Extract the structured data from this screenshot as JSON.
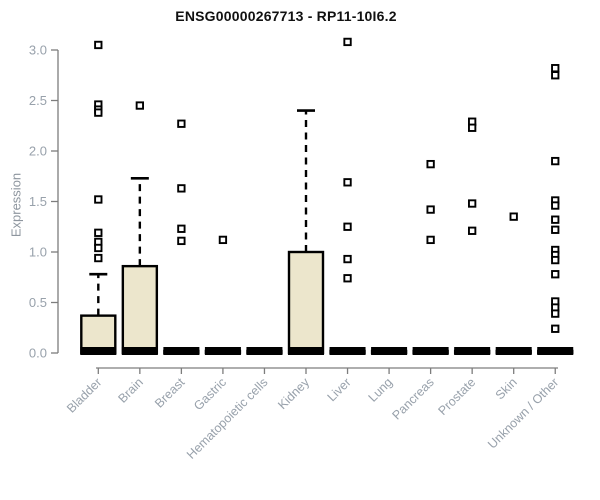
{
  "chart_data": {
    "type": "boxplot",
    "title": "ENSG00000267713 - RP11-10I6.2",
    "ylabel": "Expression",
    "xlabel": "",
    "ylim": [
      0.0,
      3.0
    ],
    "yticks": [
      0.0,
      0.5,
      1.0,
      1.5,
      2.0,
      2.5,
      3.0
    ],
    "grid": false,
    "legend": "none",
    "categories": [
      "Bladder",
      "Brain",
      "Breast",
      "Gastric",
      "Hematopoietic cells",
      "Kidney",
      "Liver",
      "Lung",
      "Pancreas",
      "Prostate",
      "Skin",
      "Unknown / Other"
    ],
    "boxes": [
      {
        "category": "Bladder",
        "whisker_low": 0,
        "q1": 0,
        "median": 0.02,
        "q3": 0.37,
        "whisker_high": 0.78,
        "outliers": [
          3.05,
          2.46,
          2.41,
          2.38,
          1.52,
          1.19,
          1.1,
          1.04,
          0.94
        ]
      },
      {
        "category": "Brain",
        "whisker_low": 0,
        "q1": 0,
        "median": 0.02,
        "q3": 0.86,
        "whisker_high": 1.73,
        "outliers": [
          2.45
        ]
      },
      {
        "category": "Breast",
        "whisker_low": 0,
        "q1": 0,
        "median": 0.02,
        "q3": 0.02,
        "whisker_high": 0,
        "outliers": [
          2.27,
          1.63,
          1.23,
          1.11
        ]
      },
      {
        "category": "Gastric",
        "whisker_low": 0,
        "q1": 0,
        "median": 0.02,
        "q3": 0.02,
        "whisker_high": 0,
        "outliers": [
          1.12
        ]
      },
      {
        "category": "Hematopoietic cells",
        "whisker_low": 0,
        "q1": 0,
        "median": 0.02,
        "q3": 0.02,
        "whisker_high": 0,
        "outliers": []
      },
      {
        "category": "Kidney",
        "whisker_low": 0,
        "q1": 0,
        "median": 0.02,
        "q3": 1.0,
        "whisker_high": 2.4,
        "outliers": []
      },
      {
        "category": "Liver",
        "whisker_low": 0,
        "q1": 0,
        "median": 0.02,
        "q3": 0.02,
        "whisker_high": 0,
        "outliers": [
          3.08,
          1.69,
          1.25,
          0.93,
          0.74
        ]
      },
      {
        "category": "Lung",
        "whisker_low": 0,
        "q1": 0,
        "median": 0.02,
        "q3": 0.02,
        "whisker_high": 0,
        "outliers": []
      },
      {
        "category": "Pancreas",
        "whisker_low": 0,
        "q1": 0,
        "median": 0.02,
        "q3": 0.02,
        "whisker_high": 0,
        "outliers": [
          1.87,
          1.42,
          1.12
        ]
      },
      {
        "category": "Prostate",
        "whisker_low": 0,
        "q1": 0,
        "median": 0.02,
        "q3": 0.02,
        "whisker_high": 0,
        "outliers": [
          2.29,
          2.23,
          1.48,
          1.21
        ]
      },
      {
        "category": "Skin",
        "whisker_low": 0,
        "q1": 0,
        "median": 0.02,
        "q3": 0.02,
        "whisker_high": 0,
        "outliers": [
          1.35
        ]
      },
      {
        "category": "Unknown / Other",
        "whisker_low": 0,
        "q1": 0,
        "median": 0.02,
        "q3": 0.02,
        "whisker_high": 0,
        "outliers": [
          2.82,
          2.75,
          1.9,
          1.51,
          1.46,
          1.32,
          1.22,
          1.02,
          0.97,
          0.92,
          0.78,
          0.51,
          0.45,
          0.39,
          0.24
        ]
      }
    ],
    "colors": {
      "box_fill": "#ece6cc",
      "box_stroke": "#000000",
      "median": "#000000",
      "whisker": "#000000",
      "outlier_stroke": "#000000",
      "outlier_fill": "#ffffff",
      "axis": "#7d7d7d",
      "tick_label": "#98a1ab",
      "title": "#111111"
    }
  }
}
